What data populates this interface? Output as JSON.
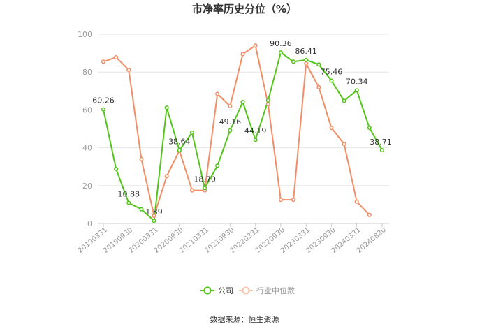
{
  "chart_data": {
    "type": "line",
    "title": "市净率历史分位（%）",
    "ylim": [
      0,
      100
    ],
    "yticks": [
      0,
      20,
      40,
      60,
      80,
      100
    ],
    "xtick_labels": [
      "20190331",
      "20190930",
      "20200331",
      "20200930",
      "20210331",
      "20210930",
      "20220331",
      "20220930",
      "20230331",
      "20230930",
      "20240331",
      "20240820"
    ],
    "grid": "horizontal",
    "legend_position": "bottom",
    "series": [
      {
        "name": "公司",
        "color": "#52c41a",
        "values": [
          60.26,
          28.8,
          10.88,
          7.5,
          1.39,
          61.2,
          38.64,
          48.0,
          18.7,
          30.5,
          49.16,
          64.2,
          44.19,
          65.0,
          90.36,
          85.5,
          86.41,
          84.0,
          75.46,
          64.8,
          70.34,
          50.5,
          38.71
        ],
        "labels": {
          "0": "60.26",
          "2": "10.88",
          "4": "1.39",
          "6": "38.64",
          "8": "18.70",
          "10": "49.16",
          "12": "44.19",
          "14": "90.36",
          "16": "86.41",
          "18": "75.46",
          "20": "70.34",
          "22": "38.71"
        }
      },
      {
        "name": "行业中位数",
        "color": "#f28d65",
        "values": [
          85.5,
          87.8,
          81.2,
          34.0,
          4.0,
          25.0,
          38.5,
          17.5,
          17.5,
          68.5,
          62.0,
          89.5,
          94.0,
          63.0,
          12.5,
          12.5,
          84.5,
          72.0,
          50.5,
          42.0,
          11.5,
          4.5,
          null
        ]
      }
    ]
  },
  "source_text": "数据来源：恒生聚源"
}
